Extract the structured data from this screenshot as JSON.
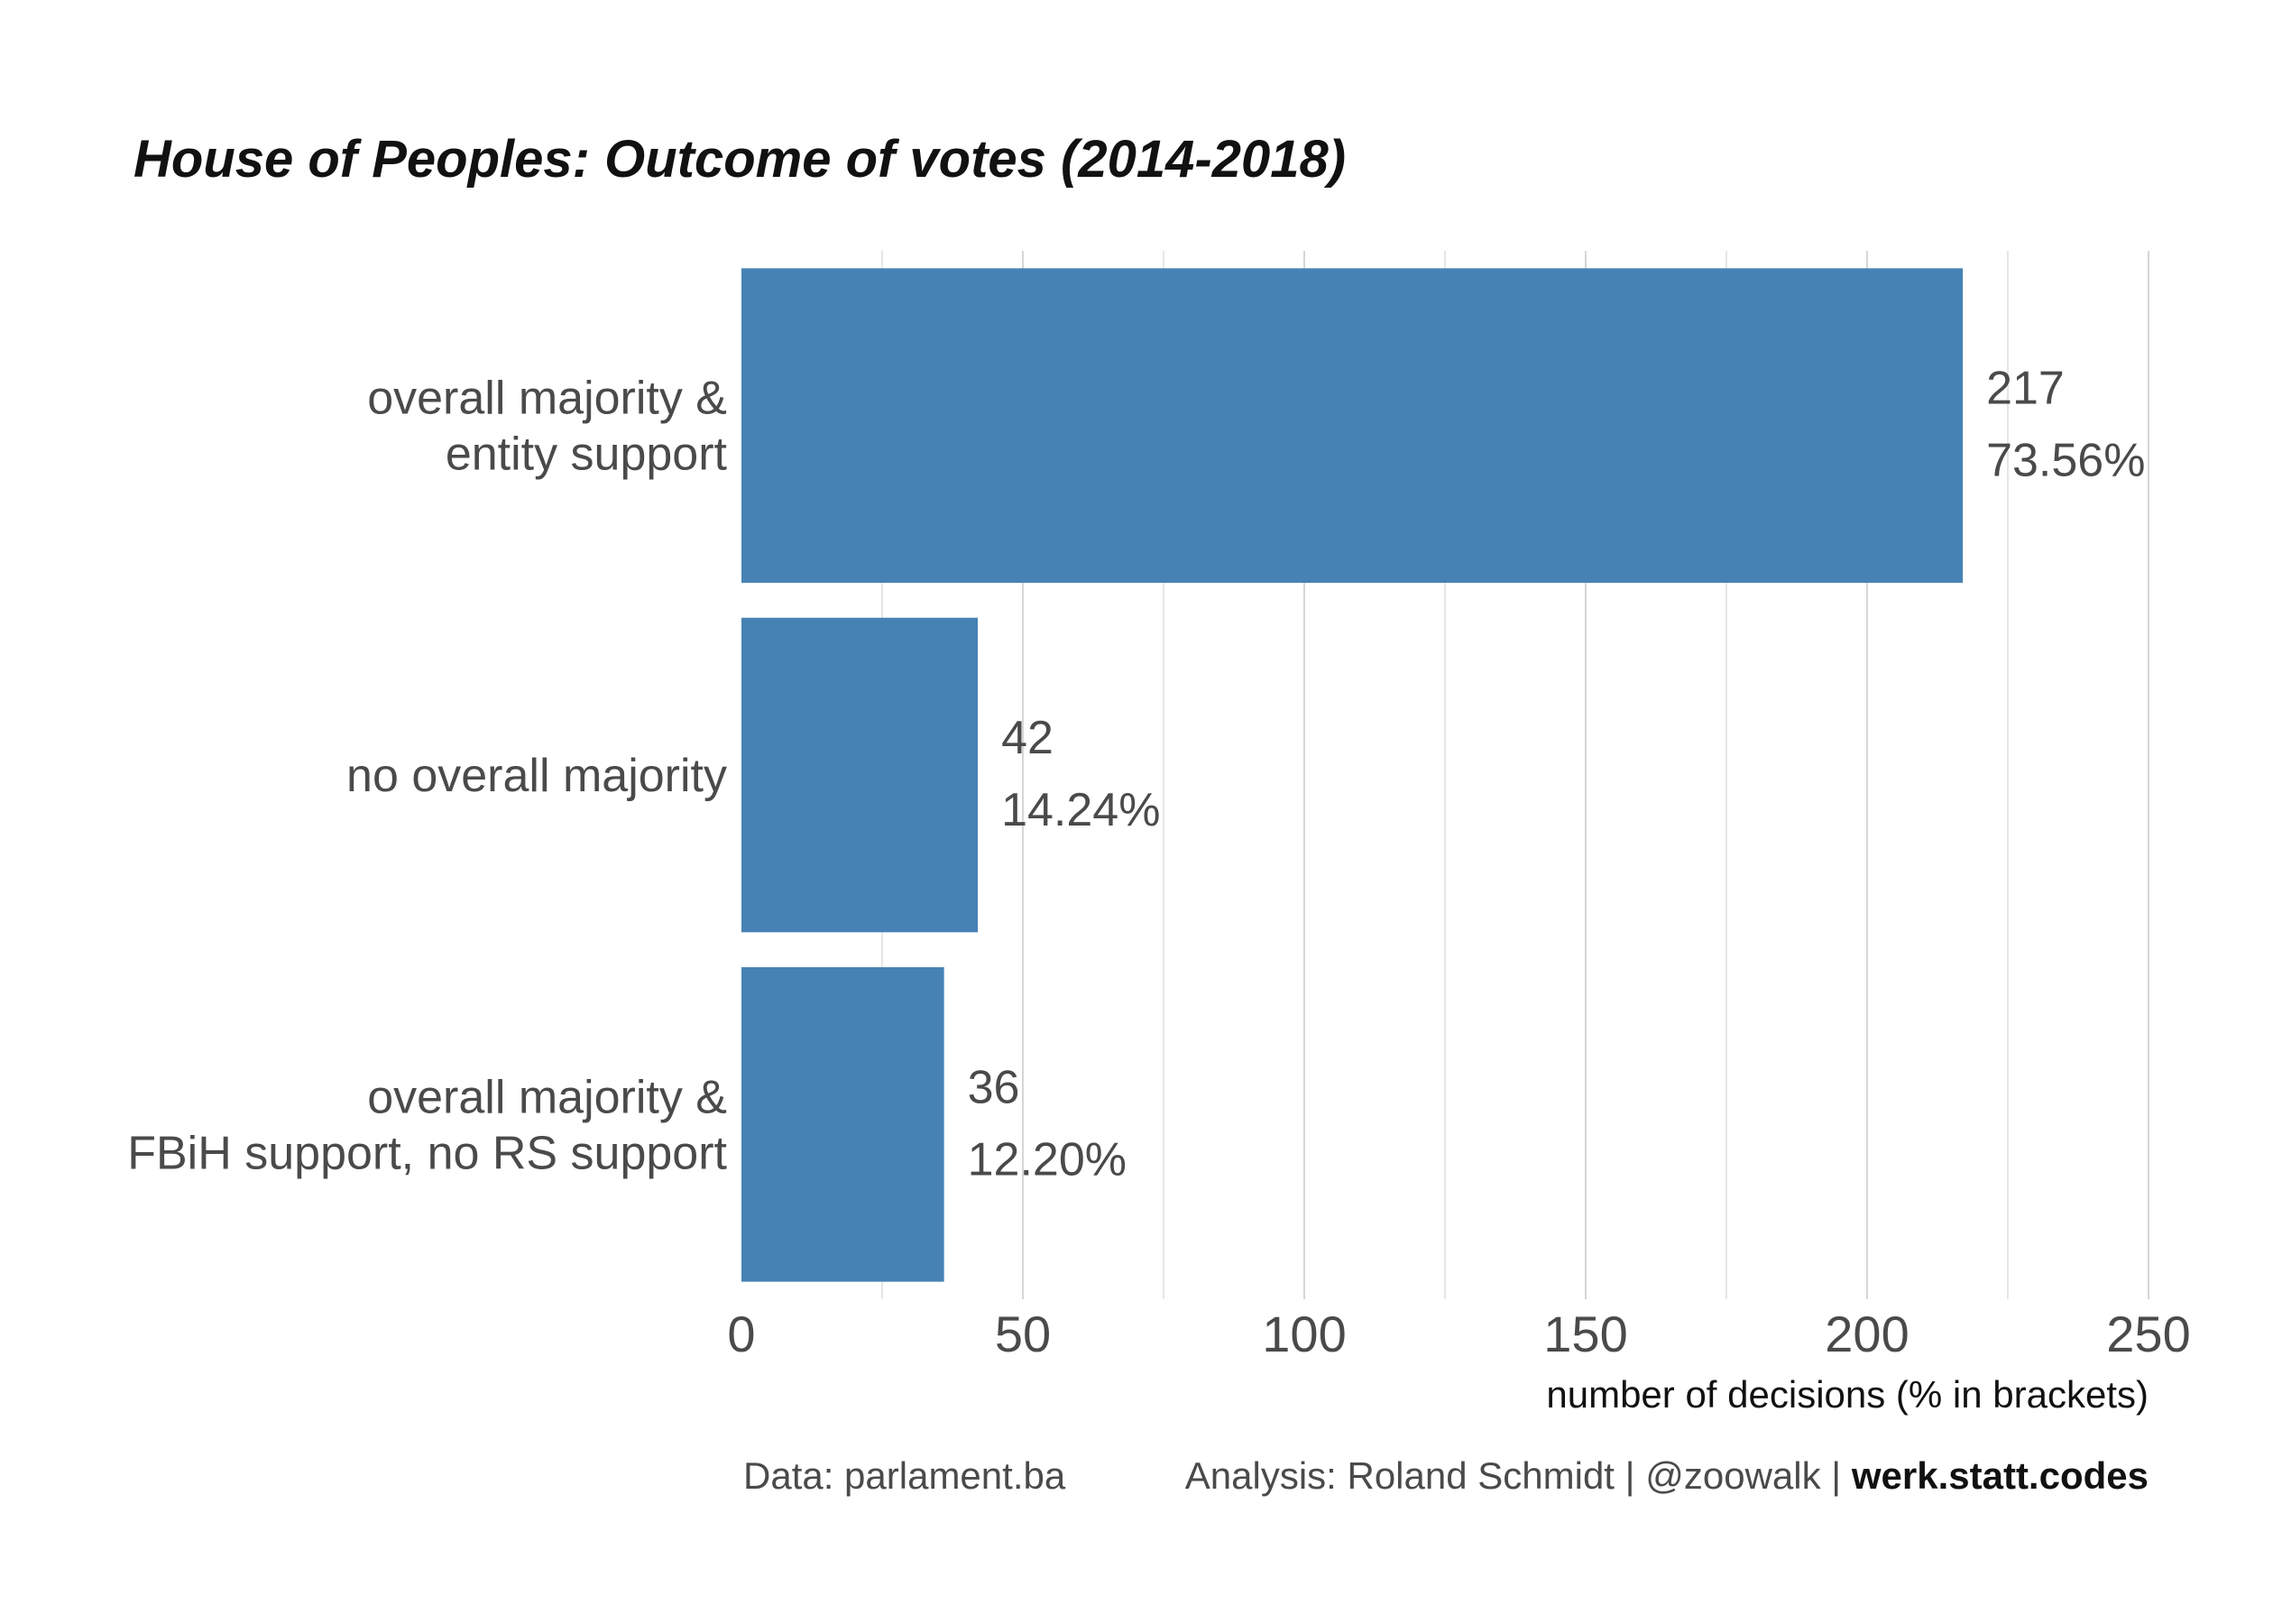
{
  "chart_data": {
    "type": "bar",
    "orientation": "horizontal",
    "title": "House of Peoples: Outcome of votes (2014-2018)",
    "categories": [
      [
        "overall majority &",
        "entity support"
      ],
      [
        "no overall majority"
      ],
      [
        "overall majority &",
        "FBiH support, no RS support"
      ]
    ],
    "values": [
      217,
      42,
      36
    ],
    "percent_labels": [
      "73.56%",
      "14.24%",
      "12.20%"
    ],
    "xlabel": "number of decisions (% in brackets)",
    "ylabel": "",
    "xlim": [
      0,
      250
    ],
    "ticks": [
      0,
      50,
      100,
      150,
      200,
      250
    ],
    "grid": true,
    "bar_color": "#4682b4"
  },
  "caption": {
    "data_source": "Data: parlament.ba",
    "analysis": "Analysis: Roland Schmidt | @zoowalk | ",
    "site": "werk.statt.codes"
  }
}
